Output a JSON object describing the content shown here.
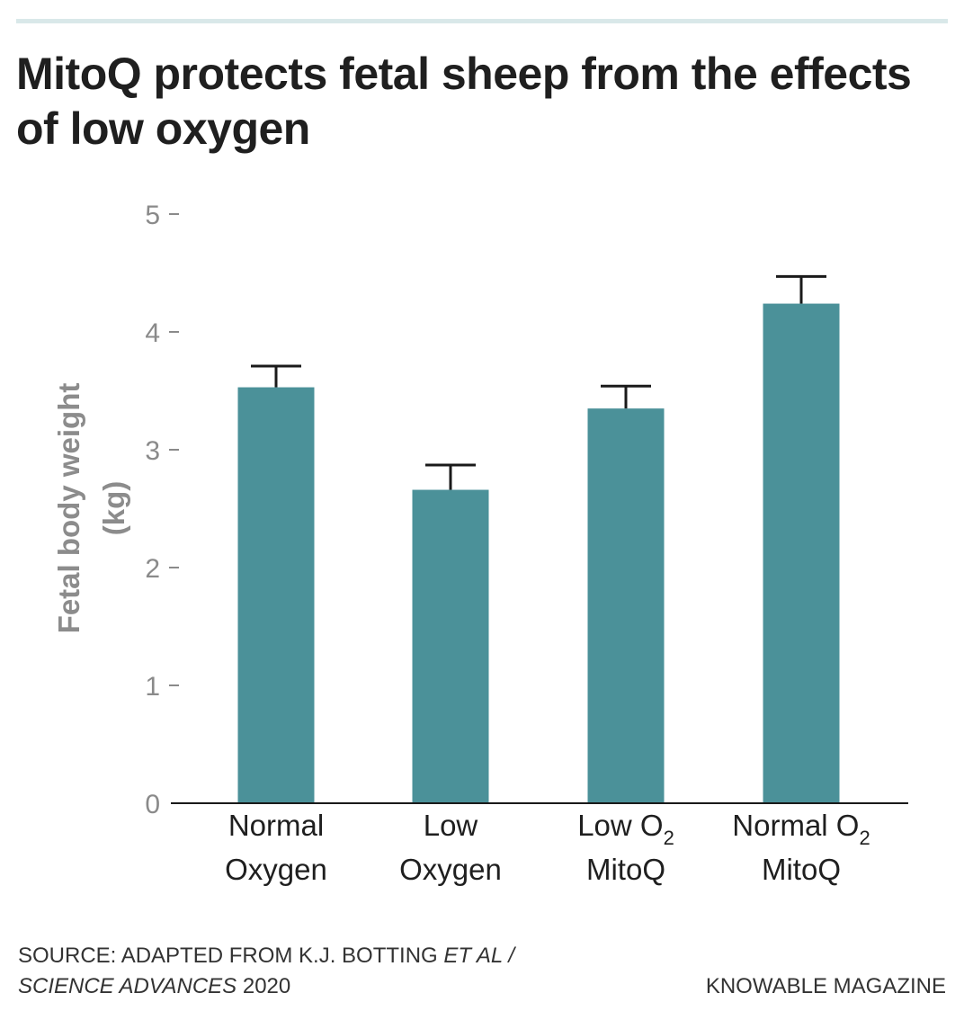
{
  "title": "MitoQ protects fetal sheep from the effects of low oxygen",
  "chart_data": {
    "type": "bar",
    "title": "MitoQ protects fetal sheep from the effects of low oxygen",
    "xlabel": "",
    "ylabel_line1": "Fetal body weight",
    "ylabel_line2": "(kg)",
    "ylim": [
      0,
      5
    ],
    "yticks": [
      "0",
      "1",
      "2",
      "3",
      "4",
      "5"
    ],
    "categories": [
      {
        "line1": "Normal",
        "line1_sub": "",
        "line2": "Oxygen"
      },
      {
        "line1": "Low",
        "line1_sub": "",
        "line2": "Oxygen"
      },
      {
        "line1": "Low O",
        "line1_sub": "2",
        "line2": "MitoQ"
      },
      {
        "line1": "Normal O",
        "line1_sub": "2",
        "line2": "MitoQ"
      }
    ],
    "values": [
      3.53,
      2.66,
      3.35,
      4.24
    ],
    "error_upper": [
      3.71,
      2.87,
      3.54,
      4.47
    ],
    "bar_color": "#4b9199",
    "error_color": "#1a1a1a"
  },
  "source": {
    "prefix": "SOURCE: ADAPTED FROM K.J. BOTTING ",
    "etal": "ET AL /",
    "journal": "SCIENCE ADVANCES",
    "year": " 2020"
  },
  "brand": "KNOWABLE MAGAZINE"
}
